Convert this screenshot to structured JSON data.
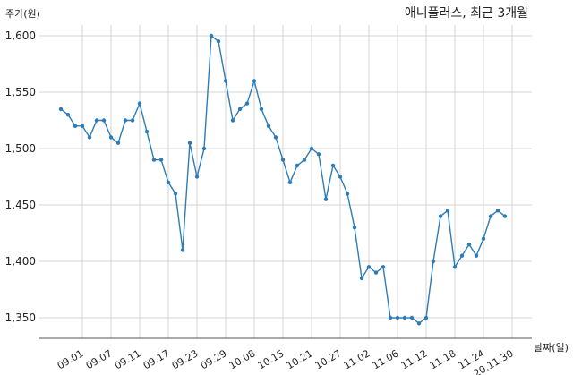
{
  "chart_data": {
    "type": "line",
    "title": "애니플러스, 최근 3개월",
    "ylabel": "주가(원)",
    "xlabel": "날짜(일)",
    "ylim": [
      1325,
      1610
    ],
    "yticks": [
      1350,
      1400,
      1450,
      1500,
      1550,
      1600
    ],
    "ytick_labels": [
      "1,350",
      "1,400",
      "1,450",
      "1,500",
      "1,550",
      "1,600"
    ],
    "xticks": [
      {
        "label": "09.01",
        "index": 3
      },
      {
        "label": "09.07",
        "index": 7
      },
      {
        "label": "09.11",
        "index": 11
      },
      {
        "label": "09.17",
        "index": 15
      },
      {
        "label": "09.23",
        "index": 19
      },
      {
        "label": "09.29",
        "index": 23
      },
      {
        "label": "10.08",
        "index": 27
      },
      {
        "label": "10.15",
        "index": 31
      },
      {
        "label": "10.21",
        "index": 35
      },
      {
        "label": "10.27",
        "index": 39
      },
      {
        "label": "11.02",
        "index": 43
      },
      {
        "label": "11.06",
        "index": 47
      },
      {
        "label": "11.12",
        "index": 51
      },
      {
        "label": "11.18",
        "index": 55
      },
      {
        "label": "11.24",
        "index": 59
      },
      {
        "label": "20.11.30",
        "index": 63
      }
    ],
    "grid": true,
    "color": "#2e7cb5",
    "series": [
      {
        "values": [
          1535,
          1530,
          1520,
          1520,
          1510,
          1525,
          1525,
          1510,
          1505,
          1525,
          1525,
          1540,
          1515,
          1490,
          1490,
          1470,
          1460,
          1410,
          1505,
          1475,
          1500,
          1600,
          1595,
          1560,
          1525,
          1535,
          1540,
          1560,
          1535,
          1520,
          1510,
          1490,
          1470,
          1485,
          1490,
          1500,
          1495,
          1455,
          1485,
          1475,
          1460,
          1430,
          1385,
          1395,
          1390,
          1395,
          1350,
          1350,
          1350,
          1350,
          1345,
          1350,
          1400,
          1440,
          1445,
          1395,
          1405,
          1415,
          1405,
          1420,
          1440,
          1445,
          1440
        ]
      }
    ]
  }
}
